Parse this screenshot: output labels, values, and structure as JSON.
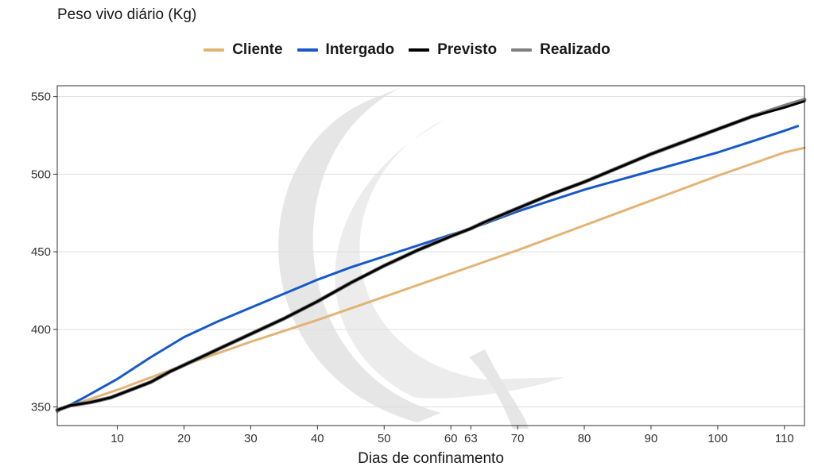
{
  "chart_data": {
    "type": "line",
    "title": "Peso vivo diário (Kg)",
    "xlabel": "Dias de confinamento",
    "ylabel": "",
    "xlim": [
      1,
      113
    ],
    "ylim": [
      338,
      557
    ],
    "x_ticks": [
      10,
      20,
      30,
      40,
      50,
      60,
      63,
      70,
      80,
      90,
      100,
      110
    ],
    "y_ticks": [
      350,
      400,
      450,
      500,
      550
    ],
    "grid": true,
    "legend_position": "top",
    "series": [
      {
        "name": "Cliente",
        "color": "#e3b373",
        "points": [
          [
            1,
            348
          ],
          [
            10,
            361
          ],
          [
            20,
            377
          ],
          [
            30,
            392
          ],
          [
            40,
            406
          ],
          [
            50,
            421
          ],
          [
            60,
            436
          ],
          [
            70,
            451
          ],
          [
            80,
            467
          ],
          [
            90,
            483
          ],
          [
            100,
            499
          ],
          [
            110,
            514
          ],
          [
            113,
            517
          ]
        ]
      },
      {
        "name": "Intergado",
        "color": "#1759c9",
        "points": [
          [
            1,
            347
          ],
          [
            5,
            356
          ],
          [
            10,
            368
          ],
          [
            15,
            382
          ],
          [
            20,
            395
          ],
          [
            25,
            405
          ],
          [
            30,
            414
          ],
          [
            35,
            423
          ],
          [
            40,
            432
          ],
          [
            45,
            440
          ],
          [
            50,
            447
          ],
          [
            55,
            454
          ],
          [
            60,
            461
          ],
          [
            63,
            465
          ],
          [
            65,
            468
          ],
          [
            70,
            476
          ],
          [
            75,
            483
          ],
          [
            80,
            490
          ],
          [
            85,
            496
          ],
          [
            90,
            502
          ],
          [
            95,
            508
          ],
          [
            100,
            514
          ],
          [
            105,
            521
          ],
          [
            110,
            528
          ],
          [
            112,
            531
          ]
        ]
      },
      {
        "name": "Previsto",
        "color": "#000000",
        "points": [
          [
            1,
            348
          ],
          [
            3,
            351
          ],
          [
            6,
            353
          ],
          [
            9,
            356
          ],
          [
            12,
            361
          ],
          [
            15,
            366
          ],
          [
            18,
            373
          ],
          [
            20,
            377
          ],
          [
            23,
            383
          ],
          [
            26,
            389
          ],
          [
            30,
            397
          ],
          [
            35,
            407
          ],
          [
            40,
            418
          ],
          [
            45,
            430
          ],
          [
            50,
            441
          ],
          [
            55,
            451
          ],
          [
            60,
            460
          ],
          [
            63,
            465
          ],
          [
            65,
            469
          ],
          [
            70,
            478
          ],
          [
            75,
            487
          ],
          [
            80,
            495
          ],
          [
            85,
            504
          ],
          [
            90,
            513
          ],
          [
            95,
            521
          ],
          [
            100,
            529
          ],
          [
            105,
            537
          ],
          [
            110,
            543
          ],
          [
            113,
            547
          ]
        ]
      },
      {
        "name": "Realizado",
        "color": "#808080",
        "points": [
          [
            1,
            348
          ],
          [
            3,
            351
          ],
          [
            6,
            353
          ],
          [
            9,
            356
          ],
          [
            12,
            361
          ],
          [
            15,
            366
          ],
          [
            18,
            373
          ],
          [
            20,
            377
          ],
          [
            23,
            383
          ],
          [
            26,
            389
          ],
          [
            30,
            397
          ],
          [
            35,
            407
          ],
          [
            40,
            418
          ],
          [
            45,
            430
          ],
          [
            50,
            441
          ],
          [
            55,
            451
          ],
          [
            60,
            460
          ],
          [
            63,
            465
          ],
          [
            65,
            469
          ],
          [
            70,
            478
          ],
          [
            75,
            487
          ],
          [
            80,
            495
          ],
          [
            85,
            504
          ],
          [
            90,
            513
          ],
          [
            95,
            521
          ],
          [
            100,
            529
          ],
          [
            105,
            537
          ],
          [
            110,
            544
          ],
          [
            113,
            548
          ]
        ]
      }
    ]
  }
}
